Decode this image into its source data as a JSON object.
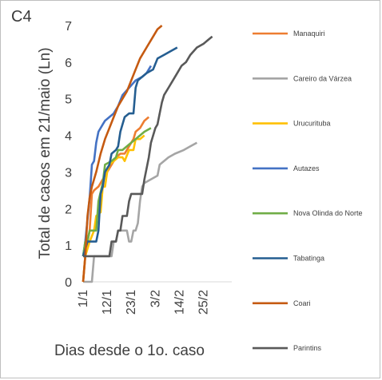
{
  "panel_label": "C4",
  "chart_data": {
    "type": "line",
    "title": "",
    "xlabel": "Dias desde o 1o. caso",
    "ylabel": "Total de casos em 21/maio (Ln)",
    "ylim": [
      0,
      7
    ],
    "xlim": [
      1,
      66
    ],
    "yticks": [
      0,
      1,
      2,
      3,
      4,
      5,
      6,
      7
    ],
    "xticks": [
      {
        "value": 1,
        "label": "1/1"
      },
      {
        "value": 12,
        "label": "12/1"
      },
      {
        "value": 23,
        "label": "23/1"
      },
      {
        "value": 34,
        "label": "3/2"
      },
      {
        "value": 45,
        "label": "14/2"
      },
      {
        "value": 56,
        "label": "25/2"
      }
    ],
    "grid": false,
    "legend_position": "right",
    "series": [
      {
        "name": "Manaquiri",
        "color": "#ed7d31",
        "points": [
          [
            1,
            0
          ],
          [
            2,
            0.7
          ],
          [
            3,
            1.1
          ],
          [
            4,
            1.4
          ],
          [
            5,
            2.4
          ],
          [
            6,
            2.5
          ],
          [
            8,
            2.6
          ],
          [
            10,
            2.8
          ],
          [
            12,
            3.0
          ],
          [
            14,
            3.2
          ],
          [
            16,
            3.4
          ],
          [
            18,
            3.5
          ],
          [
            20,
            3.5
          ],
          [
            22,
            3.7
          ],
          [
            24,
            3.9
          ],
          [
            25,
            4.1
          ],
          [
            27,
            4.2
          ],
          [
            29,
            4.4
          ],
          [
            31,
            4.5
          ]
        ]
      },
      {
        "name": "Careiro da Várzea",
        "color": "#a5a5a5",
        "points": [
          [
            1,
            0
          ],
          [
            4,
            0
          ],
          [
            5,
            0
          ],
          [
            6,
            0.7
          ],
          [
            13,
            0.7
          ],
          [
            14,
            0.7
          ],
          [
            15,
            1.1
          ],
          [
            16,
            1.1
          ],
          [
            17,
            1.4
          ],
          [
            21,
            1.4
          ],
          [
            22,
            1.1
          ],
          [
            23,
            1.1
          ],
          [
            24,
            1.4
          ],
          [
            25,
            1.4
          ],
          [
            26,
            1.6
          ],
          [
            27,
            2.2
          ],
          [
            28,
            2.6
          ],
          [
            29,
            2.7
          ],
          [
            32,
            2.8
          ],
          [
            35,
            2.9
          ],
          [
            36,
            3.2
          ],
          [
            40,
            3.4
          ],
          [
            43,
            3.5
          ],
          [
            47,
            3.6
          ],
          [
            50,
            3.7
          ],
          [
            53,
            3.8
          ]
        ]
      },
      {
        "name": "Urucurituba",
        "color": "#ffc000",
        "points": [
          [
            1,
            0
          ],
          [
            2,
            0.7
          ],
          [
            4,
            1.1
          ],
          [
            6,
            1.4
          ],
          [
            7,
            1.8
          ],
          [
            9,
            1.9
          ],
          [
            10,
            2.6
          ],
          [
            11,
            2.6
          ],
          [
            12,
            3.0
          ],
          [
            13,
            3.2
          ],
          [
            15,
            3.3
          ],
          [
            17,
            3.4
          ],
          [
            19,
            3.4
          ],
          [
            20,
            3.3
          ],
          [
            22,
            3.6
          ],
          [
            24,
            3.6
          ],
          [
            25,
            3.9
          ],
          [
            27,
            3.9
          ],
          [
            29,
            4.0
          ]
        ]
      },
      {
        "name": "Autazes",
        "color": "#4472c4",
        "points": [
          [
            1,
            0.7
          ],
          [
            2,
            1.1
          ],
          [
            4,
            2.3
          ],
          [
            5,
            3.2
          ],
          [
            6,
            3.3
          ],
          [
            7,
            3.8
          ],
          [
            8,
            4.1
          ],
          [
            10,
            4.3
          ],
          [
            11,
            4.4
          ],
          [
            13,
            4.5
          ],
          [
            15,
            4.6
          ],
          [
            17,
            4.8
          ],
          [
            19,
            5.1
          ],
          [
            22,
            5.3
          ],
          [
            25,
            5.5
          ],
          [
            28,
            5.6
          ],
          [
            30,
            5.7
          ],
          [
            32,
            5.9
          ]
        ]
      },
      {
        "name": "Nova Olinda do Norte",
        "color": "#70ad47",
        "points": [
          [
            1,
            0.7
          ],
          [
            2,
            1.1
          ],
          [
            3,
            1.1
          ],
          [
            4,
            1.4
          ],
          [
            7,
            1.4
          ],
          [
            8,
            2.2
          ],
          [
            10,
            2.7
          ],
          [
            11,
            3.2
          ],
          [
            14,
            3.3
          ],
          [
            16,
            3.4
          ],
          [
            17,
            3.6
          ],
          [
            19,
            3.6
          ],
          [
            21,
            3.7
          ],
          [
            23,
            3.8
          ],
          [
            25,
            3.9
          ],
          [
            27,
            4.0
          ],
          [
            29,
            4.1
          ],
          [
            32,
            4.2
          ]
        ]
      },
      {
        "name": "Tabatinga",
        "color": "#255e91",
        "points": [
          [
            1,
            0.7
          ],
          [
            3,
            1.1
          ],
          [
            5,
            1.1
          ],
          [
            7,
            1.1
          ],
          [
            8,
            1.4
          ],
          [
            9,
            2.4
          ],
          [
            10,
            2.6
          ],
          [
            11,
            3.0
          ],
          [
            13,
            3.2
          ],
          [
            14,
            3.5
          ],
          [
            16,
            3.6
          ],
          [
            17,
            3.7
          ],
          [
            18,
            4.1
          ],
          [
            19,
            4.3
          ],
          [
            20,
            4.5
          ],
          [
            22,
            4.6
          ],
          [
            24,
            4.6
          ],
          [
            25,
            5.3
          ],
          [
            26,
            5.5
          ],
          [
            28,
            5.6
          ],
          [
            30,
            5.7
          ],
          [
            33,
            5.8
          ],
          [
            35,
            6.1
          ],
          [
            38,
            6.2
          ],
          [
            41,
            6.3
          ],
          [
            44,
            6.4
          ]
        ]
      },
      {
        "name": "Coari",
        "color": "#c55a11",
        "points": [
          [
            1,
            0
          ],
          [
            2,
            0.7
          ],
          [
            3,
            1.8
          ],
          [
            4,
            2.3
          ],
          [
            5,
            2.6
          ],
          [
            7,
            3.0
          ],
          [
            9,
            3.5
          ],
          [
            11,
            3.9
          ],
          [
            13,
            4.2
          ],
          [
            15,
            4.5
          ],
          [
            17,
            4.8
          ],
          [
            19,
            5.0
          ],
          [
            21,
            5.2
          ],
          [
            23,
            5.5
          ],
          [
            25,
            5.8
          ],
          [
            27,
            6.1
          ],
          [
            30,
            6.4
          ],
          [
            33,
            6.7
          ],
          [
            35,
            6.9
          ],
          [
            37,
            7.0
          ]
        ]
      },
      {
        "name": "Parintins",
        "color": "#595959",
        "points": [
          [
            1,
            0.7
          ],
          [
            7,
            0.7
          ],
          [
            13,
            0.7
          ],
          [
            14,
            1.1
          ],
          [
            16,
            1.1
          ],
          [
            17,
            1.4
          ],
          [
            18,
            1.4
          ],
          [
            19,
            1.8
          ],
          [
            21,
            1.8
          ],
          [
            22,
            2.2
          ],
          [
            23,
            2.4
          ],
          [
            28,
            2.4
          ],
          [
            29,
            2.8
          ],
          [
            31,
            3.4
          ],
          [
            32,
            3.8
          ],
          [
            34,
            4.2
          ],
          [
            35,
            4.3
          ],
          [
            36,
            4.6
          ],
          [
            37,
            4.9
          ],
          [
            38,
            5.1
          ],
          [
            40,
            5.3
          ],
          [
            42,
            5.5
          ],
          [
            44,
            5.7
          ],
          [
            46,
            5.9
          ],
          [
            48,
            6.0
          ],
          [
            50,
            6.2
          ],
          [
            53,
            6.4
          ],
          [
            56,
            6.5
          ],
          [
            58,
            6.6
          ],
          [
            60,
            6.7
          ]
        ]
      }
    ]
  }
}
